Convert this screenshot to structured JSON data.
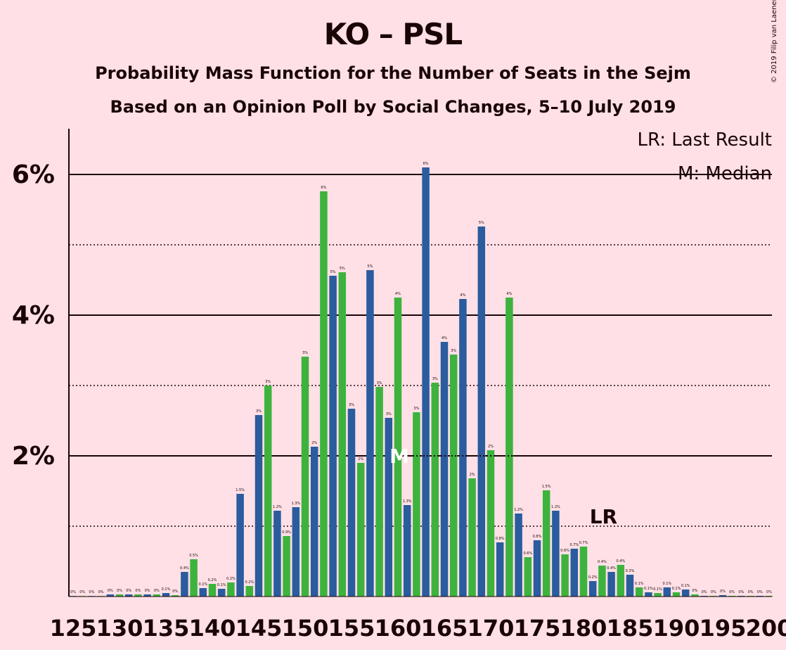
{
  "title": "KO – PSL",
  "subtitle1": "Probability Mass Function for the Number of Seats in the Sejm",
  "subtitle2": "Based on an Opinion Poll by Social Changes, 5–10 July 2019",
  "legend": {
    "last_result": "LR: Last Result",
    "median": "M: Median"
  },
  "copyright": "© 2019 Filip van Laenen",
  "colors": {
    "blue": "#2A5C9E",
    "green": "#3DB33D",
    "background": "#FFE0E6",
    "median_marker": "#FFFFFF",
    "lr_marker": "#1a0505"
  },
  "chart_data": {
    "type": "bar",
    "ylim": [
      0,
      6.6
    ],
    "yticks": [
      2,
      4,
      6
    ],
    "ytick_labels": [
      "2%",
      "4%",
      "6%"
    ],
    "dotted_lines": [
      1,
      3,
      5
    ],
    "xticks": [
      125,
      130,
      135,
      140,
      145,
      150,
      155,
      160,
      165,
      170,
      175,
      180,
      185,
      190,
      195,
      200
    ],
    "x_start": 125,
    "values": [
      0,
      0,
      0,
      0,
      0.03,
      0.03,
      0.03,
      0.03,
      0.03,
      0.03,
      0.05,
      0.02,
      0.35,
      0.53,
      0.12,
      0.18,
      0.11,
      0.2,
      1.46,
      0.15,
      2.58,
      3,
      1.22,
      0.86,
      1.27,
      3.41,
      2.13,
      5.76,
      4.56,
      4.61,
      2.67,
      1.9,
      4.64,
      2.98,
      2.54,
      4.25,
      1.3,
      2.62,
      6.1,
      3.04,
      3.62,
      3.44,
      4.23,
      1.68,
      5.26,
      2.08,
      0.77,
      4.25,
      1.18,
      0.56,
      0.8,
      1.51,
      1.22,
      0.6,
      0.68,
      0.71,
      0.22,
      0.44,
      0.35,
      0.45,
      0.31,
      0.13,
      0.06,
      0.05,
      0.13,
      0.06,
      0.1,
      0.03,
      0.01,
      0.01,
      0.02,
      0.01,
      0.01,
      0.01,
      0.01,
      0.01
    ],
    "labels": [
      "0%",
      "0%",
      "0%",
      "0%",
      "0%",
      "0%",
      "0%",
      "0%",
      "0%",
      "0%",
      "0.1%",
      "0%",
      "0.4%",
      "0.5%",
      "0.1%",
      "0.2%",
      "0.1%",
      "0.2%",
      "1.5%",
      "0.2%",
      "3%",
      "3%",
      "1.2%",
      "0.9%",
      "1.3%",
      "3%",
      "2%",
      "6%",
      "5%",
      "5%",
      "3%",
      "2%",
      "5%",
      "3%",
      "3%",
      "4%",
      "1.3%",
      "3%",
      "6%",
      "3%",
      "4%",
      "3%",
      "4%",
      "2%",
      "5%",
      "2%",
      "0.8%",
      "4%",
      "1.2%",
      "0.6%",
      "0.8%",
      "1.5%",
      "1.2%",
      "0.6%",
      "0.7%",
      "0.7%",
      "0.2%",
      "0.4%",
      "0.4%",
      "0.4%",
      "0.3%",
      "0.1%",
      "0.1%",
      "0.1%",
      "0.1%",
      "0.1%",
      "0.1%",
      "0%",
      "0%",
      "0%",
      "0%",
      "0%",
      "0%",
      "0%",
      "0%",
      "0%"
    ],
    "median_seat": 160,
    "median_label": "M",
    "last_result_seat": 182,
    "last_result_label": "LR"
  }
}
